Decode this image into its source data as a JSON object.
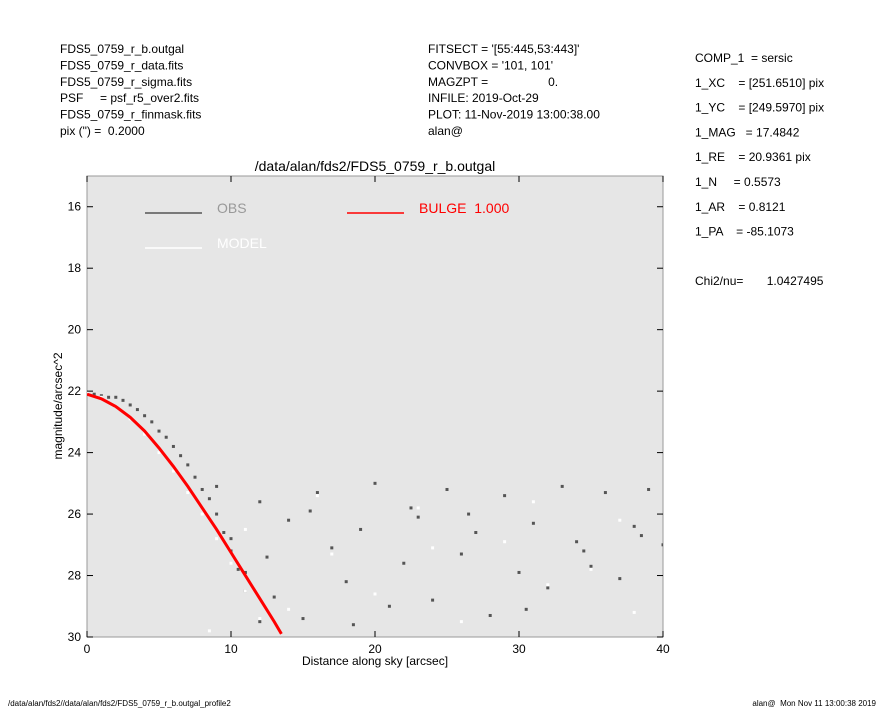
{
  "header": {
    "left": [
      "FDS5_0759_r_b.outgal",
      "FDS5_0759_r_data.fits",
      "FDS5_0759_r_sigma.fits",
      "PSF     = psf_r5_over2.fits",
      "FDS5_0759_r_finmask.fits",
      "pix (\") =  0.2000"
    ],
    "middle": [
      "FITSECT = '[55:445,53:443]'",
      "CONVBOX = '101, 101'",
      "MAGZPT =                  0.",
      "INFILE: 2019-Oct-29",
      "PLOT: 11-Nov-2019 13:00:38.00",
      "alan@"
    ],
    "right": [
      "COMP_1  = sersic",
      "1_XC    = [251.6510] pix",
      "1_YC    = [249.5970] pix",
      "1_MAG   = 17.4842",
      "1_RE    = 20.9361 pix",
      "1_N     = 0.5573",
      "1_AR    = 0.8121",
      "1_PA    = -85.1073"
    ],
    "chi2": "Chi2/nu=       1.0427495"
  },
  "footer": {
    "left": "/data/alan/fds2//data/alan/fds2/FDS5_0759_r_b.outgal_profile2",
    "right": "alan@  Mon Nov 11 13:00:38 2019"
  },
  "chart_data": {
    "type": "scatter",
    "title": "/data/alan/fds2/FDS5_0759_r_b.outgal",
    "x_label": "Distance along sky [arcsec]",
    "y_label": "magnitude/arcsec^2",
    "xlim": [
      0,
      40
    ],
    "xticks": [
      0,
      10,
      20,
      30,
      40
    ],
    "ylim": [
      15,
      30
    ],
    "y_inverted": true,
    "yticks": [
      16,
      18,
      20,
      22,
      24,
      26,
      28,
      30
    ],
    "series": [
      {
        "name": "OBS",
        "color": "#555555",
        "kind": "points",
        "x": [
          0.5,
          1,
          1.5,
          2,
          2.5,
          3,
          3.5,
          4,
          4.5,
          5,
          5.5,
          6,
          6.5,
          7,
          7.5,
          8,
          8.5,
          9,
          9.5,
          10,
          10.5,
          11,
          12,
          9,
          10,
          11,
          12,
          13,
          14,
          15,
          16,
          17,
          18,
          19,
          20,
          21,
          22,
          23,
          24,
          25,
          26,
          27,
          28,
          29,
          30,
          31,
          32,
          33,
          34,
          35,
          36,
          37,
          38,
          39,
          40,
          15.5,
          18.5,
          22.5,
          26.5,
          30.5,
          34.5,
          38.5,
          12.5
        ],
        "values": [
          22.1,
          22.15,
          22.2,
          22.2,
          22.3,
          22.45,
          22.6,
          22.8,
          23.0,
          23.3,
          23.5,
          23.8,
          24.1,
          24.4,
          24.8,
          25.2,
          25.5,
          26.0,
          26.6,
          27.2,
          27.8,
          28.5,
          29.5,
          25.1,
          26.8,
          27.9,
          25.6,
          28.7,
          26.2,
          29.4,
          25.3,
          27.1,
          28.2,
          26.5,
          25.0,
          29.0,
          27.6,
          26.1,
          28.8,
          25.2,
          27.3,
          26.6,
          29.3,
          25.4,
          27.9,
          26.3,
          28.4,
          25.1,
          26.9,
          27.7,
          25.3,
          28.1,
          26.4,
          25.2,
          27.0,
          25.9,
          29.6,
          25.8,
          26.0,
          29.1,
          27.2,
          26.7,
          27.4
        ]
      },
      {
        "name": "MODEL",
        "color": "#ffffff",
        "kind": "points",
        "x": [
          0,
          1,
          2,
          3,
          4,
          5,
          6,
          7,
          8,
          9,
          10,
          11,
          12,
          8.5,
          11,
          14,
          17,
          20,
          23,
          26,
          29,
          32,
          35,
          38,
          16,
          24,
          31,
          37
        ],
        "values": [
          22.05,
          22.2,
          22.5,
          22.9,
          23.4,
          24.0,
          24.6,
          25.3,
          26.0,
          26.8,
          27.6,
          28.5,
          29.4,
          29.8,
          26.5,
          29.1,
          27.3,
          28.6,
          25.8,
          29.5,
          26.9,
          28.3,
          27.8,
          29.2,
          25.4,
          27.1,
          25.6,
          26.2
        ]
      },
      {
        "name": "BULGE  1.000",
        "color": "#ff0000",
        "kind": "line",
        "x": [
          0,
          1,
          2,
          3,
          4,
          5,
          6,
          7,
          8,
          9,
          10,
          11,
          12,
          13,
          13.5
        ],
        "values": [
          22.1,
          22.25,
          22.5,
          22.85,
          23.3,
          23.85,
          24.45,
          25.1,
          25.8,
          26.5,
          27.25,
          28.0,
          28.75,
          29.5,
          29.9
        ]
      }
    ]
  }
}
